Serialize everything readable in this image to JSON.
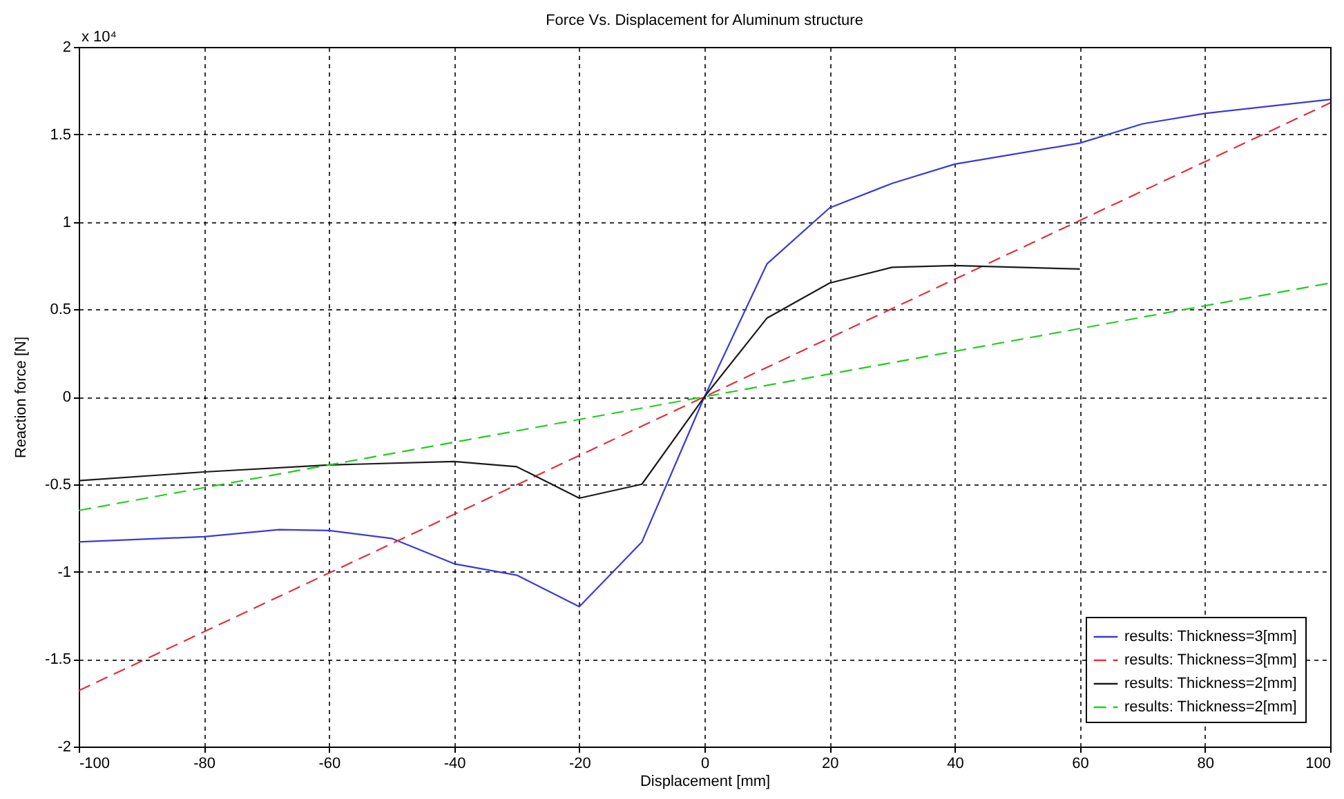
{
  "chart_data": {
    "type": "line",
    "title": "Force Vs. Displacement for Aluminum structure",
    "xlabel": "Displacement [mm]",
    "ylabel": "Reaction force [N]",
    "annotations": [
      "x 10⁴"
    ],
    "xlim": [
      -100,
      100
    ],
    "xticks": [
      -100,
      -80,
      -60,
      -40,
      -20,
      0,
      20,
      40,
      60,
      80,
      100
    ],
    "ylim": [
      -2,
      2
    ],
    "yticks": [
      -2,
      -1.5,
      -1,
      -0.5,
      0,
      0.5,
      1,
      1.5,
      2
    ],
    "grid": true,
    "legend": "bottom right",
    "series": [
      {
        "name": "results: Thickness=3[mm]",
        "color": "#3a3ad6",
        "line_style": "solid",
        "x": [
          -100,
          -80,
          -68,
          -60,
          -50,
          -40,
          -30,
          -20,
          -10,
          0,
          10,
          20,
          30,
          40,
          50,
          60,
          70,
          80,
          100
        ],
        "values": [
          -0.83,
          -0.8,
          -0.76,
          -0.765,
          -0.81,
          -0.955,
          -1.02,
          -1.2,
          -0.83,
          0,
          0.76,
          1.08,
          1.22,
          1.33,
          1.39,
          1.45,
          1.56,
          1.62,
          1.7
        ]
      },
      {
        "name": "results: Thickness=3[mm]",
        "color": "#e0303c",
        "line_style": "dashed",
        "x": [
          -100,
          0,
          100
        ],
        "values": [
          -1.68,
          0,
          1.68
        ]
      },
      {
        "name": "results: Thickness=2[mm]",
        "color": "#1a1a1a",
        "line_style": "solid",
        "x": [
          -100,
          -80,
          -60,
          -40,
          -30,
          -20,
          -10,
          0,
          10,
          20,
          30,
          40,
          50,
          60
        ],
        "values": [
          -0.48,
          -0.43,
          -0.39,
          -0.37,
          -0.4,
          -0.58,
          -0.5,
          0,
          0.45,
          0.65,
          0.74,
          0.75,
          0.74,
          0.73
        ]
      },
      {
        "name": "results: Thickness=2[mm]",
        "color": "#22cc22",
        "line_style": "dashed",
        "x": [
          -100,
          0,
          100
        ],
        "values": [
          -0.65,
          0,
          0.65
        ]
      }
    ]
  }
}
